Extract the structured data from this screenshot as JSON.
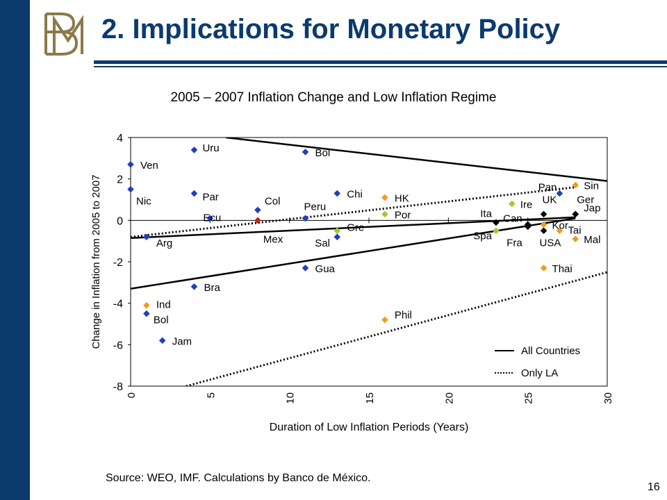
{
  "slide": {
    "title": "2. Implications for Monetary Policy",
    "page_number": "16",
    "source": "Source: WEO, IMF. Calculations by Banco de México.",
    "colors": {
      "bar": "#0b3a6e",
      "logo": "#8a7a4a",
      "title": "#0b3a6e"
    }
  },
  "chart_data": {
    "type": "scatter",
    "title": "2005 – 2007 Inflation Change and Low Inflation Regime",
    "xlabel": "Duration of Low Inflation Periods (Years)",
    "ylabel": "Change in Inflation from 2005 to 2007",
    "xlim": [
      0,
      30
    ],
    "ylim": [
      -8,
      4
    ],
    "x_ticks": [
      "0",
      "5",
      "10",
      "15",
      "20",
      "25",
      "30"
    ],
    "y_ticks": [
      "4",
      "2",
      "0",
      "-2",
      "-4",
      "-6",
      "-8"
    ],
    "grid": false,
    "legend_position": "bottom-right",
    "colors": {
      "latin_america": "#1f3fbf",
      "asia": "#f39a1e",
      "europe": "#9acd32",
      "mexico": "#cc1e1e",
      "g7": "#000000"
    },
    "points": [
      {
        "label": "Ven",
        "x": 0,
        "y": 2.7,
        "group": "latin_america"
      },
      {
        "label": "Nic",
        "x": 0,
        "y": 1.5,
        "group": "latin_america"
      },
      {
        "label": "Arg",
        "x": 1,
        "y": -0.8,
        "group": "latin_america"
      },
      {
        "label": "Ind",
        "x": 1,
        "y": -4.1,
        "group": "asia"
      },
      {
        "label": "Bol",
        "x": 1,
        "y": -4.5,
        "group": "latin_america"
      },
      {
        "label": "Jam",
        "x": 2,
        "y": -5.8,
        "group": "latin_america"
      },
      {
        "label": "Uru",
        "x": 4,
        "y": 3.4,
        "group": "latin_america"
      },
      {
        "label": "Par",
        "x": 4,
        "y": 1.3,
        "group": "latin_america"
      },
      {
        "label": "Ecu",
        "x": 5,
        "y": 0.1,
        "group": "latin_america"
      },
      {
        "label": "Bra",
        "x": 4,
        "y": -3.2,
        "group": "latin_america"
      },
      {
        "label": "Col",
        "x": 8,
        "y": 0.5,
        "group": "latin_america"
      },
      {
        "label": "Mex",
        "x": 8,
        "y": 0.0,
        "group": "mexico"
      },
      {
        "label": "Bol",
        "x": 11,
        "y": 3.3,
        "group": "latin_america"
      },
      {
        "label": "Peru",
        "x": 11,
        "y": 0.1,
        "group": "latin_america"
      },
      {
        "label": "Gua",
        "x": 11,
        "y": -2.3,
        "group": "latin_america"
      },
      {
        "label": "Chi",
        "x": 13,
        "y": 1.3,
        "group": "latin_america"
      },
      {
        "label": "Sal",
        "x": 13,
        "y": -0.8,
        "group": "latin_america"
      },
      {
        "label": "Gre",
        "x": 13,
        "y": -0.5,
        "group": "europe"
      },
      {
        "label": "HK",
        "x": 16,
        "y": 1.1,
        "group": "asia"
      },
      {
        "label": "Por",
        "x": 16,
        "y": 0.3,
        "group": "europe"
      },
      {
        "label": "Phil",
        "x": 16,
        "y": -4.8,
        "group": "asia"
      },
      {
        "label": "Ita",
        "x": 23,
        "y": -0.1,
        "group": "g7"
      },
      {
        "label": "Spa",
        "x": 23,
        "y": -0.5,
        "group": "europe"
      },
      {
        "label": "Ire",
        "x": 24,
        "y": 0.8,
        "group": "europe"
      },
      {
        "label": "Can",
        "x": 25,
        "y": -0.2,
        "group": "g7"
      },
      {
        "label": "Fra",
        "x": 25,
        "y": -0.3,
        "group": "g7"
      },
      {
        "label": "UK",
        "x": 26,
        "y": 0.3,
        "group": "g7"
      },
      {
        "label": "Kor",
        "x": 26,
        "y": -0.2,
        "group": "asia"
      },
      {
        "label": "USA",
        "x": 26,
        "y": -0.5,
        "group": "g7"
      },
      {
        "label": "Thai",
        "x": 26,
        "y": -2.3,
        "group": "asia"
      },
      {
        "label": "Pan",
        "x": 27,
        "y": 1.3,
        "group": "latin_america"
      },
      {
        "label": "Tai",
        "x": 27,
        "y": -0.5,
        "group": "asia"
      },
      {
        "label": "Sin",
        "x": 28,
        "y": 1.7,
        "group": "asia"
      },
      {
        "label": "Ger",
        "x": 28,
        "y": 0.3,
        "group": "g7"
      },
      {
        "label": "Jap",
        "x": 28,
        "y": 0.3,
        "group": "g7"
      },
      {
        "label": "Mal",
        "x": 28,
        "y": -0.9,
        "group": "asia"
      }
    ],
    "fit_lines": [
      {
        "name": "All Countries",
        "style": "solid",
        "x": [
          0,
          28
        ],
        "y": [
          -0.85,
          0.15
        ]
      },
      {
        "name": "Only LA",
        "style": "dotted",
        "x": [
          0,
          28
        ],
        "y": [
          -0.8,
          1.6
        ]
      }
    ],
    "band_lines": [
      {
        "style": "solid",
        "x": [
          0,
          28
        ],
        "y": [
          -3.3,
          0.1
        ]
      },
      {
        "style": "solid",
        "x": [
          6,
          30
        ],
        "y": [
          4.0,
          1.9
        ]
      },
      {
        "style": "dotted",
        "x": [
          3.5,
          30
        ],
        "y": [
          -8.0,
          -2.5
        ]
      }
    ]
  }
}
